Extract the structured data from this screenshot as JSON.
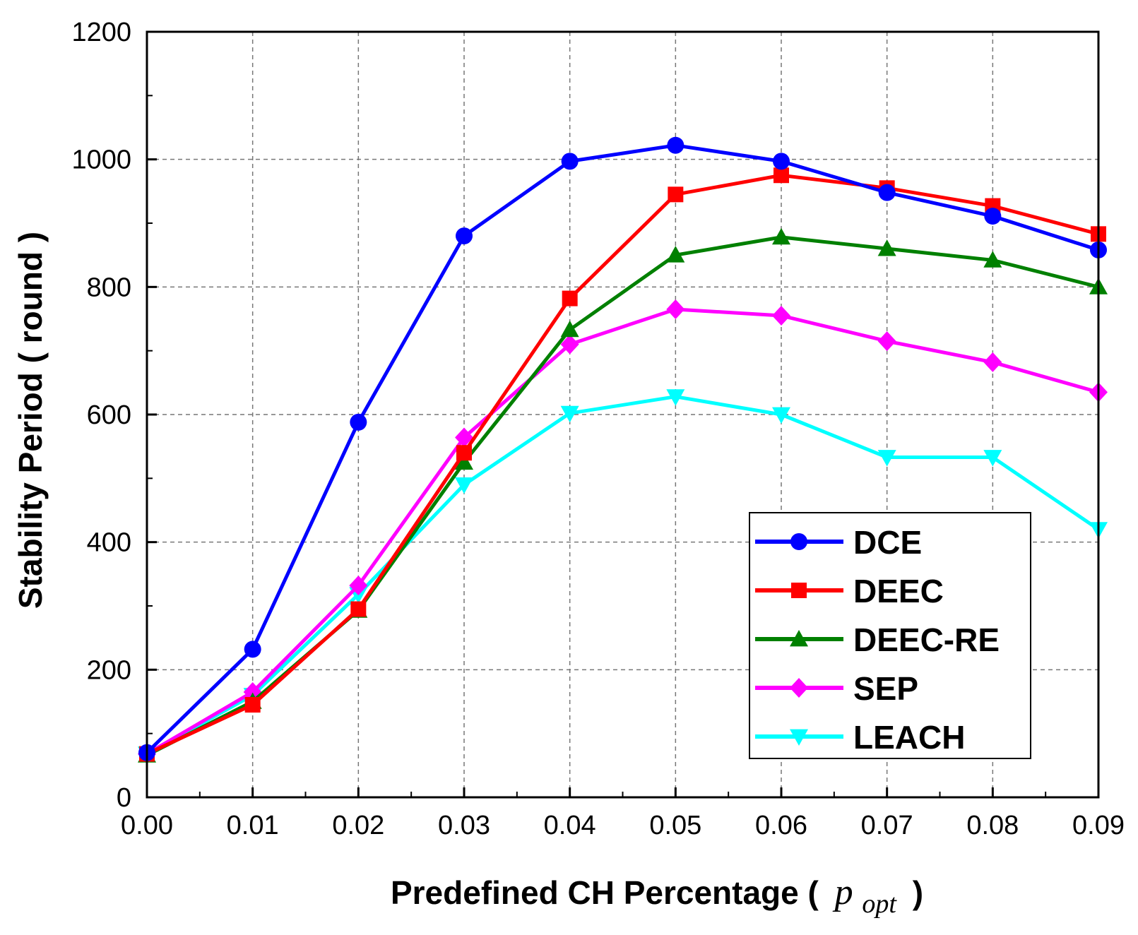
{
  "chart_data": {
    "type": "line",
    "title": "",
    "xlabel_main": "Predefined CH Percentage (",
    "xlabel_symbol": "p",
    "xlabel_subscript": "opt",
    "xlabel_close": ")",
    "ylabel": "Stability Period ( round )",
    "xlim": [
      0,
      0.09
    ],
    "ylim": [
      0,
      1200
    ],
    "x_ticks": [
      "0.00",
      "0.01",
      "0.02",
      "0.03",
      "0.04",
      "0.05",
      "0.06",
      "0.07",
      "0.08",
      "0.09"
    ],
    "y_ticks": [
      "0",
      "200",
      "400",
      "600",
      "800",
      "1000",
      "1200"
    ],
    "grid": true,
    "legend_position": "bottom-right",
    "x": [
      0.0,
      0.01,
      0.02,
      0.03,
      0.04,
      0.05,
      0.06,
      0.07,
      0.08,
      0.09
    ],
    "series": [
      {
        "name": "DCE",
        "color": "#0000ff",
        "marker": "circle",
        "values": [
          70,
          232,
          588,
          880,
          997,
          1022,
          997,
          948,
          911,
          858
        ]
      },
      {
        "name": "DEEC",
        "color": "#ff0000",
        "marker": "square",
        "values": [
          68,
          145,
          295,
          540,
          782,
          945,
          975,
          955,
          927,
          883
        ]
      },
      {
        "name": "DEEC-RE",
        "color": "#008000",
        "marker": "triangle-up",
        "values": [
          66,
          150,
          293,
          525,
          733,
          850,
          878,
          860,
          842,
          800
        ]
      },
      {
        "name": "SEP",
        "color": "#ff00ff",
        "marker": "diamond",
        "values": [
          68,
          165,
          332,
          564,
          710,
          765,
          755,
          715,
          682,
          635
        ]
      },
      {
        "name": "LEACH",
        "color": "#00ffff",
        "marker": "triangle-down",
        "values": [
          68,
          160,
          318,
          490,
          602,
          628,
          600,
          533,
          533,
          420
        ]
      }
    ]
  }
}
